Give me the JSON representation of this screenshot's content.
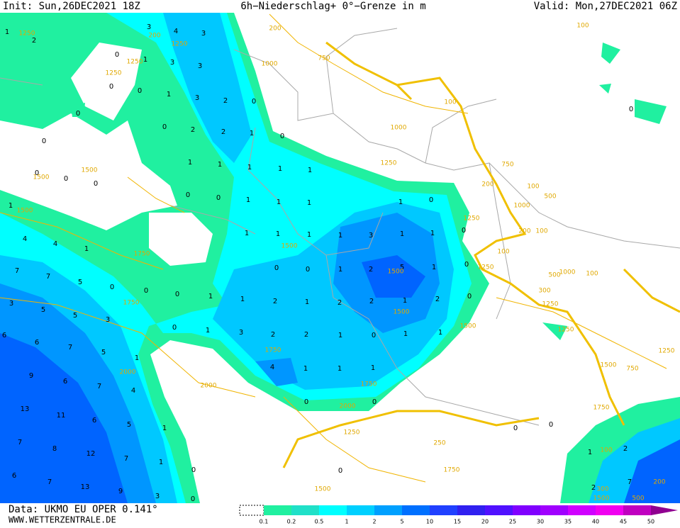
{
  "header": {
    "init": "Init: Sun,26DEC2021 18Z",
    "title": "6h−Niederschlag+ 0°−Grenze in m",
    "valid": "Valid: Mon,27DEC2021 06Z"
  },
  "footer": {
    "data": "Data: UKMO EU OPER 0.141°",
    "website": "WWW.WETTERZENTRALE.DE"
  },
  "colorbar": {
    "labels": [
      0.1,
      0.2,
      0.5,
      1,
      2,
      5,
      10,
      15,
      20,
      25,
      30,
      35,
      40,
      45,
      50
    ],
    "colors": [
      "#20f0a0",
      "#20e0c8",
      "#00ffff",
      "#00d0ff",
      "#00a0ff",
      "#0070ff",
      "#2040ff",
      "#3020f0",
      "#5010ff",
      "#8000ff",
      "#a000ff",
      "#d000ff",
      "#f000f0",
      "#c000c0",
      "#900090"
    ]
  },
  "map": {
    "precip_values": [
      1,
      2,
      3,
      4,
      3,
      0,
      1,
      3,
      3,
      0,
      0,
      1,
      3,
      2,
      0,
      0,
      0,
      2,
      2,
      1,
      0,
      0,
      1,
      1,
      1,
      1,
      1,
      0,
      0,
      0,
      0,
      0,
      1,
      1,
      1,
      1,
      0,
      1,
      1,
      1,
      1,
      1,
      3,
      1,
      1,
      0,
      4,
      4,
      1,
      0,
      0,
      1,
      2,
      5,
      1,
      0,
      7,
      7,
      5,
      0,
      0,
      0,
      1,
      1,
      2,
      1,
      2,
      2,
      1,
      2,
      0,
      3,
      5,
      5,
      3,
      0,
      1,
      3,
      2,
      2,
      1,
      0,
      1,
      1,
      6,
      6,
      7,
      5,
      1,
      4,
      1,
      1,
      1,
      9,
      6,
      7,
      4,
      0,
      0,
      13,
      11,
      6,
      5,
      1,
      0,
      0,
      7,
      8,
      12,
      7,
      1,
      1,
      2,
      6,
      7,
      13,
      9,
      3,
      0,
      2,
      7,
      0,
      0,
      0
    ],
    "contour_labels": [
      1250,
      1250,
      1250,
      1250,
      200,
      200,
      750,
      1000,
      100,
      100,
      1000,
      1500,
      1500,
      1500,
      1250,
      750,
      200,
      100,
      500,
      1000,
      1250,
      200,
      100,
      100,
      1250,
      1500,
      1500,
      1750,
      1750,
      1500,
      1500,
      1750,
      2000,
      2000,
      1750,
      1000,
      500,
      100,
      300,
      1250,
      1250,
      1250,
      1500,
      750,
      1750,
      1750,
      1500,
      250,
      1250,
      2000,
      100,
      300,
      1500,
      500,
      200
    ]
  }
}
